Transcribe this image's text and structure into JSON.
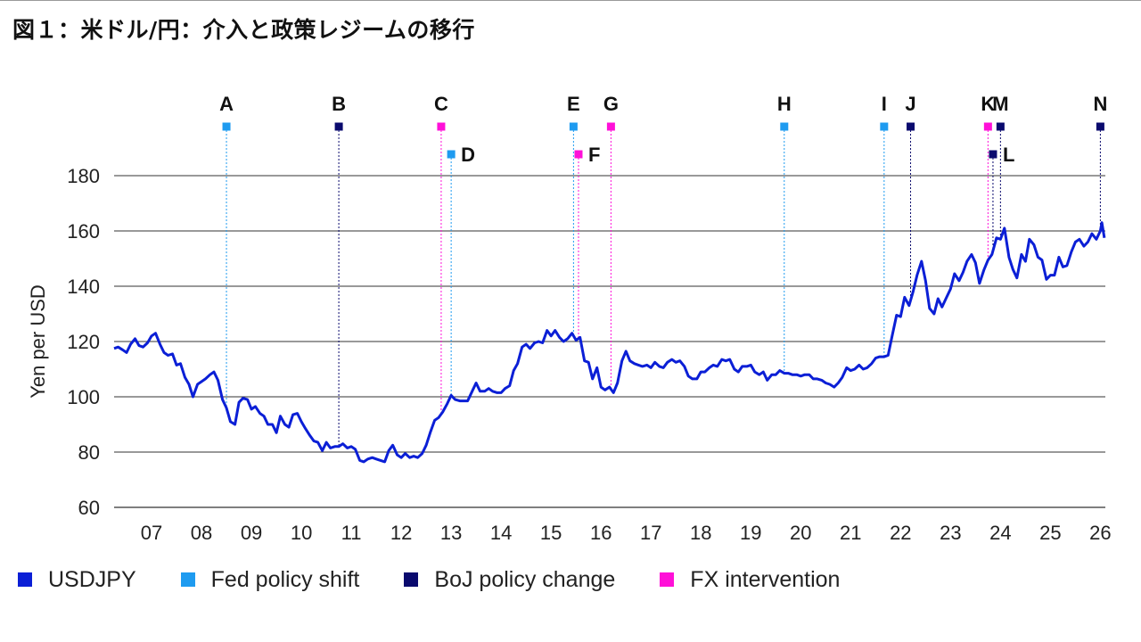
{
  "title": "図１：米ドル/円：介入と政策レジームの移行",
  "colors": {
    "line": "#0b1fd6",
    "fed": "#1e9bf0",
    "boj": "#0a0a6e",
    "fx": "#ff10d8",
    "grid": "#333333"
  },
  "legend": [
    {
      "label": "USDJPY",
      "color": "#0b1fd6"
    },
    {
      "label": "Fed policy shift",
      "color": "#1e9bf0"
    },
    {
      "label": "BoJ policy change",
      "color": "#0a0a6e"
    },
    {
      "label": "FX intervention",
      "color": "#ff10d8"
    }
  ],
  "chart_data": {
    "type": "line",
    "title": "図１：米ドル/円：介入と政策レジームの移行",
    "ylabel": "Yen per USD",
    "xlabel": "",
    "ylim": [
      60,
      180
    ],
    "xlim": [
      2006.25,
      2026.1
    ],
    "yticks": [
      60,
      80,
      100,
      120,
      140,
      160,
      180
    ],
    "xtick_labels": [
      {
        "x": 2007,
        "label": "07"
      },
      {
        "x": 2008,
        "label": "08"
      },
      {
        "x": 2009,
        "label": "09"
      },
      {
        "x": 2010,
        "label": "10"
      },
      {
        "x": 2011,
        "label": "11"
      },
      {
        "x": 2012,
        "label": "12"
      },
      {
        "x": 2013,
        "label": "13"
      },
      {
        "x": 2014,
        "label": "14"
      },
      {
        "x": 2015,
        "label": "15"
      },
      {
        "x": 2016,
        "label": "16"
      },
      {
        "x": 2017,
        "label": "17"
      },
      {
        "x": 2018,
        "label": "18"
      },
      {
        "x": 2019,
        "label": "19"
      },
      {
        "x": 2020,
        "label": "20"
      },
      {
        "x": 2021,
        "label": "21"
      },
      {
        "x": 2022,
        "label": "22"
      },
      {
        "x": 2023,
        "label": "23"
      },
      {
        "x": 2024,
        "label": "24"
      },
      {
        "x": 2025,
        "label": "25"
      },
      {
        "x": 2026,
        "label": "26"
      }
    ],
    "grid": "horizontal",
    "legend_position": "bottom",
    "series": [
      {
        "name": "USDJPY",
        "points": [
          [
            2006.25,
            117.5
          ],
          [
            2006.33,
            118
          ],
          [
            2006.42,
            117
          ],
          [
            2006.5,
            116
          ],
          [
            2006.58,
            119
          ],
          [
            2006.67,
            121
          ],
          [
            2006.75,
            118.5
          ],
          [
            2006.83,
            118
          ],
          [
            2006.92,
            119.5
          ],
          [
            2007.0,
            122
          ],
          [
            2007.08,
            123
          ],
          [
            2007.17,
            119
          ],
          [
            2007.25,
            116
          ],
          [
            2007.33,
            115
          ],
          [
            2007.42,
            115.5
          ],
          [
            2007.5,
            111.5
          ],
          [
            2007.58,
            112
          ],
          [
            2007.67,
            107
          ],
          [
            2007.75,
            104.5
          ],
          [
            2007.83,
            100
          ],
          [
            2007.92,
            104.5
          ],
          [
            2008.0,
            105.5
          ],
          [
            2008.08,
            106.5
          ],
          [
            2008.17,
            108
          ],
          [
            2008.25,
            109
          ],
          [
            2008.33,
            106
          ],
          [
            2008.42,
            99
          ],
          [
            2008.5,
            96
          ],
          [
            2008.58,
            91
          ],
          [
            2008.67,
            90
          ],
          [
            2008.75,
            98
          ],
          [
            2008.83,
            99.5
          ],
          [
            2008.92,
            99
          ],
          [
            2009.0,
            95.5
          ],
          [
            2009.08,
            96.5
          ],
          [
            2009.17,
            94
          ],
          [
            2009.25,
            93
          ],
          [
            2009.33,
            90
          ],
          [
            2009.42,
            90
          ],
          [
            2009.5,
            87
          ],
          [
            2009.58,
            93
          ],
          [
            2009.67,
            90
          ],
          [
            2009.75,
            89
          ],
          [
            2009.83,
            93.5
          ],
          [
            2009.92,
            94
          ],
          [
            2010.0,
            91
          ],
          [
            2010.08,
            88.5
          ],
          [
            2010.17,
            86
          ],
          [
            2010.25,
            84
          ],
          [
            2010.33,
            83.5
          ],
          [
            2010.42,
            80.5
          ],
          [
            2010.5,
            83.5
          ],
          [
            2010.58,
            81.5
          ],
          [
            2010.67,
            82
          ],
          [
            2010.75,
            82
          ],
          [
            2010.83,
            83
          ],
          [
            2010.92,
            81.5
          ],
          [
            2011.0,
            82
          ],
          [
            2011.08,
            81
          ],
          [
            2011.17,
            77
          ],
          [
            2011.25,
            76.5
          ],
          [
            2011.33,
            77.5
          ],
          [
            2011.42,
            78
          ],
          [
            2011.5,
            77.5
          ],
          [
            2011.58,
            77
          ],
          [
            2011.67,
            76.5
          ],
          [
            2011.75,
            80.5
          ],
          [
            2011.83,
            82.5
          ],
          [
            2011.92,
            79
          ],
          [
            2012.0,
            78
          ],
          [
            2012.08,
            79.5
          ],
          [
            2012.17,
            78
          ],
          [
            2012.25,
            78.5
          ],
          [
            2012.33,
            78
          ],
          [
            2012.42,
            79.5
          ],
          [
            2012.5,
            82.5
          ],
          [
            2012.58,
            87
          ],
          [
            2012.67,
            91.5
          ],
          [
            2012.75,
            92.5
          ],
          [
            2012.83,
            94.5
          ],
          [
            2012.92,
            97.5
          ],
          [
            2013.0,
            100.5
          ],
          [
            2013.08,
            99
          ],
          [
            2013.17,
            98.5
          ],
          [
            2013.25,
            98.5
          ],
          [
            2013.33,
            98.5
          ],
          [
            2013.42,
            102
          ],
          [
            2013.5,
            105
          ],
          [
            2013.58,
            102
          ],
          [
            2013.67,
            102
          ],
          [
            2013.75,
            103
          ],
          [
            2013.83,
            102
          ],
          [
            2013.92,
            101.5
          ],
          [
            2014.0,
            101.5
          ],
          [
            2014.08,
            103
          ],
          [
            2014.17,
            104
          ],
          [
            2014.25,
            109.5
          ],
          [
            2014.33,
            112
          ],
          [
            2014.42,
            118
          ],
          [
            2014.5,
            119
          ],
          [
            2014.58,
            117.5
          ],
          [
            2014.67,
            119.5
          ],
          [
            2014.75,
            120
          ],
          [
            2014.83,
            119.5
          ],
          [
            2014.92,
            124
          ],
          [
            2015.0,
            122
          ],
          [
            2015.08,
            124
          ],
          [
            2015.17,
            121.5
          ],
          [
            2015.25,
            120
          ],
          [
            2015.33,
            121
          ],
          [
            2015.42,
            123
          ],
          [
            2015.5,
            120.5
          ],
          [
            2015.58,
            121.5
          ],
          [
            2015.67,
            113
          ],
          [
            2015.75,
            112.5
          ],
          [
            2015.83,
            106.5
          ],
          [
            2015.92,
            110.5
          ],
          [
            2016.0,
            103.5
          ],
          [
            2016.08,
            102.5
          ],
          [
            2016.17,
            103.5
          ],
          [
            2016.25,
            101.5
          ],
          [
            2016.33,
            105
          ],
          [
            2016.42,
            113
          ],
          [
            2016.5,
            116.5
          ],
          [
            2016.58,
            113
          ],
          [
            2016.67,
            112
          ],
          [
            2016.75,
            111.5
          ],
          [
            2016.83,
            111
          ],
          [
            2016.92,
            111.5
          ],
          [
            2017.0,
            110.5
          ],
          [
            2017.08,
            112.5
          ],
          [
            2017.17,
            111
          ],
          [
            2017.25,
            110.5
          ],
          [
            2017.33,
            112.5
          ],
          [
            2017.42,
            113.5
          ],
          [
            2017.5,
            112.5
          ],
          [
            2017.58,
            113
          ],
          [
            2017.67,
            111
          ],
          [
            2017.75,
            107.5
          ],
          [
            2017.83,
            106.5
          ],
          [
            2017.92,
            106.5
          ],
          [
            2018.0,
            109
          ],
          [
            2018.08,
            109
          ],
          [
            2018.17,
            110.5
          ],
          [
            2018.25,
            111.5
          ],
          [
            2018.33,
            111
          ],
          [
            2018.42,
            113.5
          ],
          [
            2018.5,
            113
          ],
          [
            2018.58,
            113.5
          ],
          [
            2018.67,
            110
          ],
          [
            2018.75,
            109
          ],
          [
            2018.83,
            111
          ],
          [
            2018.92,
            111
          ],
          [
            2019.0,
            111.5
          ],
          [
            2019.08,
            109
          ],
          [
            2019.17,
            108
          ],
          [
            2019.25,
            109
          ],
          [
            2019.33,
            106
          ],
          [
            2019.42,
            108
          ],
          [
            2019.5,
            108
          ],
          [
            2019.58,
            109.5
          ],
          [
            2019.67,
            108.5
          ],
          [
            2019.75,
            108.5
          ],
          [
            2019.83,
            108
          ],
          [
            2019.92,
            108
          ],
          [
            2020.0,
            107.5
          ],
          [
            2020.08,
            108
          ],
          [
            2020.17,
            108
          ],
          [
            2020.25,
            106.5
          ],
          [
            2020.33,
            106.5
          ],
          [
            2020.42,
            106
          ],
          [
            2020.5,
            105
          ],
          [
            2020.58,
            104.5
          ],
          [
            2020.67,
            103.5
          ],
          [
            2020.75,
            105
          ],
          [
            2020.83,
            107
          ],
          [
            2020.92,
            110.5
          ],
          [
            2021.0,
            109.5
          ],
          [
            2021.08,
            110
          ],
          [
            2021.17,
            111.5
          ],
          [
            2021.25,
            110
          ],
          [
            2021.33,
            110.5
          ],
          [
            2021.42,
            112
          ],
          [
            2021.5,
            114
          ],
          [
            2021.58,
            114.5
          ],
          [
            2021.67,
            114.5
          ],
          [
            2021.75,
            115
          ],
          [
            2021.83,
            122
          ],
          [
            2021.92,
            129.5
          ],
          [
            2022.0,
            129
          ],
          [
            2022.08,
            136
          ],
          [
            2022.17,
            133
          ],
          [
            2022.25,
            138
          ],
          [
            2022.33,
            144
          ],
          [
            2022.42,
            149
          ],
          [
            2022.5,
            142
          ],
          [
            2022.58,
            132
          ],
          [
            2022.67,
            130
          ],
          [
            2022.75,
            135.5
          ],
          [
            2022.83,
            132.5
          ],
          [
            2022.92,
            136
          ],
          [
            2023.0,
            139
          ],
          [
            2023.08,
            144.5
          ],
          [
            2023.17,
            142
          ],
          [
            2023.25,
            145
          ],
          [
            2023.33,
            149
          ],
          [
            2023.42,
            151.5
          ],
          [
            2023.5,
            148.5
          ],
          [
            2023.58,
            141
          ],
          [
            2023.67,
            146
          ],
          [
            2023.75,
            149.5
          ],
          [
            2023.83,
            151.5
          ],
          [
            2023.92,
            157.5
          ],
          [
            2024.0,
            157
          ],
          [
            2024.08,
            161
          ],
          [
            2024.17,
            150.5
          ],
          [
            2024.25,
            146
          ],
          [
            2024.33,
            143
          ],
          [
            2024.42,
            151.5
          ],
          [
            2024.5,
            149
          ],
          [
            2024.58,
            157
          ],
          [
            2024.67,
            155
          ],
          [
            2024.75,
            150.5
          ],
          [
            2024.83,
            149.5
          ],
          [
            2024.92,
            142.5
          ],
          [
            2025.0,
            144
          ],
          [
            2025.08,
            144
          ],
          [
            2025.17,
            150.5
          ],
          [
            2025.25,
            147
          ],
          [
            2025.33,
            147.5
          ],
          [
            2025.42,
            152.5
          ],
          [
            2025.5,
            156
          ],
          [
            2025.58,
            157
          ],
          [
            2025.67,
            154.5
          ],
          [
            2025.75,
            156
          ],
          [
            2025.83,
            159
          ],
          [
            2025.92,
            157
          ],
          [
            2026.0,
            160
          ],
          [
            2026.03,
            163
          ],
          [
            2026.08,
            157.5
          ]
        ]
      }
    ],
    "events": [
      {
        "label": "A",
        "type": "fed",
        "x": 2008.5,
        "row": 1
      },
      {
        "label": "B",
        "type": "boj",
        "x": 2010.75,
        "row": 1
      },
      {
        "label": "C",
        "type": "fx",
        "x": 2012.8,
        "row": 1
      },
      {
        "label": "D",
        "type": "fed",
        "x": 2013.0,
        "row": 2
      },
      {
        "label": "E",
        "type": "fed",
        "x": 2015.45,
        "row": 1
      },
      {
        "label": "F",
        "type": "fx",
        "x": 2015.55,
        "row": 2
      },
      {
        "label": "G",
        "type": "fx",
        "x": 2016.2,
        "row": 1
      },
      {
        "label": "H",
        "type": "fed",
        "x": 2019.67,
        "row": 1
      },
      {
        "label": "I",
        "type": "fed",
        "x": 2021.67,
        "row": 1
      },
      {
        "label": "J",
        "type": "boj",
        "x": 2022.2,
        "row": 1
      },
      {
        "label": "K",
        "type": "fx",
        "x": 2023.75,
        "row": 1
      },
      {
        "label": "L",
        "type": "boj",
        "x": 2023.85,
        "row": 2
      },
      {
        "label": "M",
        "type": "boj",
        "x": 2024.0,
        "row": 1
      },
      {
        "label": "N",
        "type": "boj",
        "x": 2026.0,
        "row": 1
      }
    ]
  }
}
